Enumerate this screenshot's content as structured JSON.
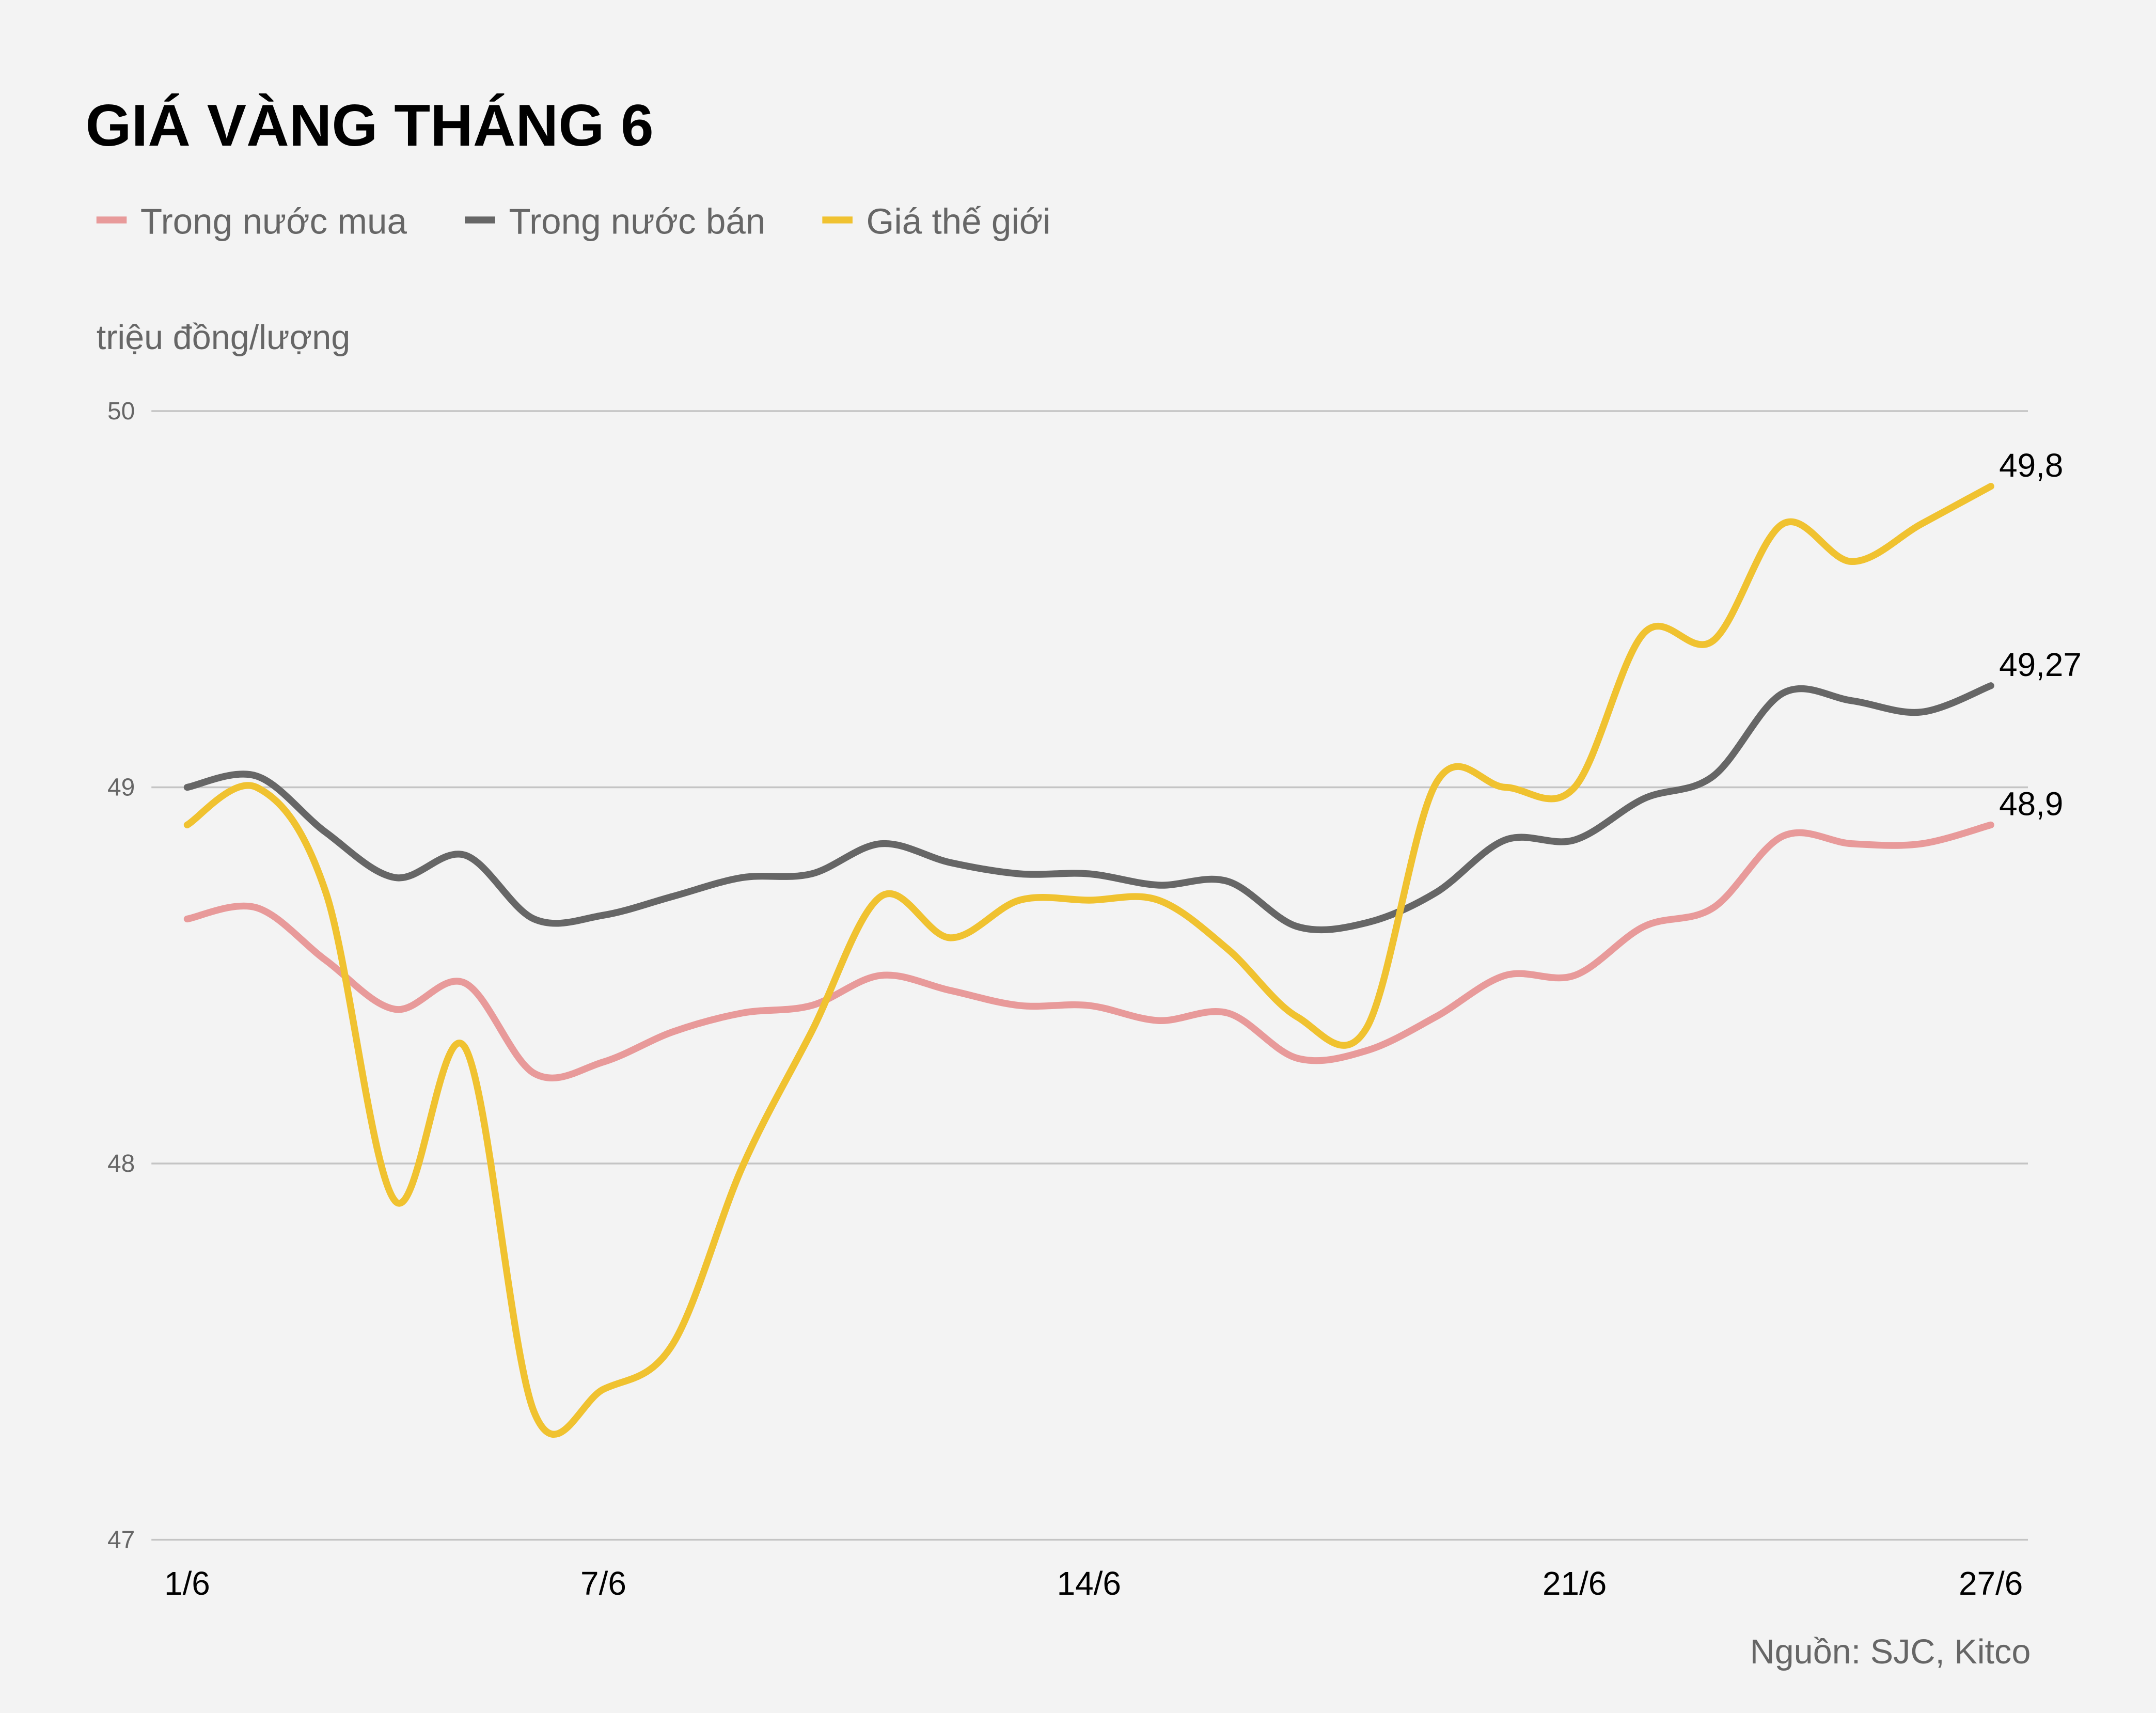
{
  "chart_data": {
    "type": "line",
    "title": "GIÁ VÀNG THÁNG 6",
    "ylabel": "triệu đồng/lượng",
    "source": "Nguồn: SJC, Kitco",
    "ylim": [
      47,
      50
    ],
    "yticks": [
      "50",
      "49",
      "48",
      "47"
    ],
    "ytick_values": [
      50,
      49,
      48,
      47
    ],
    "grid": true,
    "legend_placement": "top-left",
    "x": [
      1,
      2,
      3,
      4,
      5,
      6,
      7,
      8,
      9,
      10,
      11,
      12,
      13,
      14,
      15,
      16,
      17,
      18,
      19,
      20,
      21,
      22,
      23,
      24,
      25,
      26,
      27
    ],
    "xticks": [
      "1/6",
      "7/6",
      "14/6",
      "21/6",
      "27/6"
    ],
    "xtick_days": [
      1,
      7,
      14,
      21,
      27
    ],
    "series": [
      {
        "name": "Trong nước mua",
        "color": "#e89a9a",
        "end_label": "48,9",
        "values": [
          48.65,
          48.68,
          48.54,
          48.41,
          48.48,
          48.24,
          48.27,
          48.35,
          48.4,
          48.42,
          48.5,
          48.46,
          48.42,
          48.42,
          48.38,
          48.4,
          48.28,
          48.3,
          48.39,
          48.5,
          48.5,
          48.63,
          48.68,
          48.87,
          48.85,
          48.85,
          48.9
        ]
      },
      {
        "name": "Trong nước bán",
        "color": "#666666",
        "end_label": "49,27",
        "values": [
          49.0,
          49.03,
          48.88,
          48.76,
          48.82,
          48.65,
          48.66,
          48.71,
          48.76,
          48.77,
          48.85,
          48.8,
          48.77,
          48.77,
          48.74,
          48.75,
          48.63,
          48.64,
          48.72,
          48.86,
          48.86,
          48.97,
          49.03,
          49.25,
          49.23,
          49.2,
          49.27
        ]
      },
      {
        "name": "Giá thế giới",
        "color": "#f0c230",
        "end_label": "49,8",
        "values": [
          48.9,
          49.0,
          48.72,
          47.9,
          48.31,
          47.34,
          47.4,
          47.52,
          47.99,
          48.35,
          48.71,
          48.6,
          48.7,
          48.7,
          48.7,
          48.57,
          48.39,
          48.36,
          49.01,
          49.0,
          49.0,
          49.41,
          49.39,
          49.7,
          49.6,
          49.7,
          49.8
        ]
      }
    ]
  }
}
